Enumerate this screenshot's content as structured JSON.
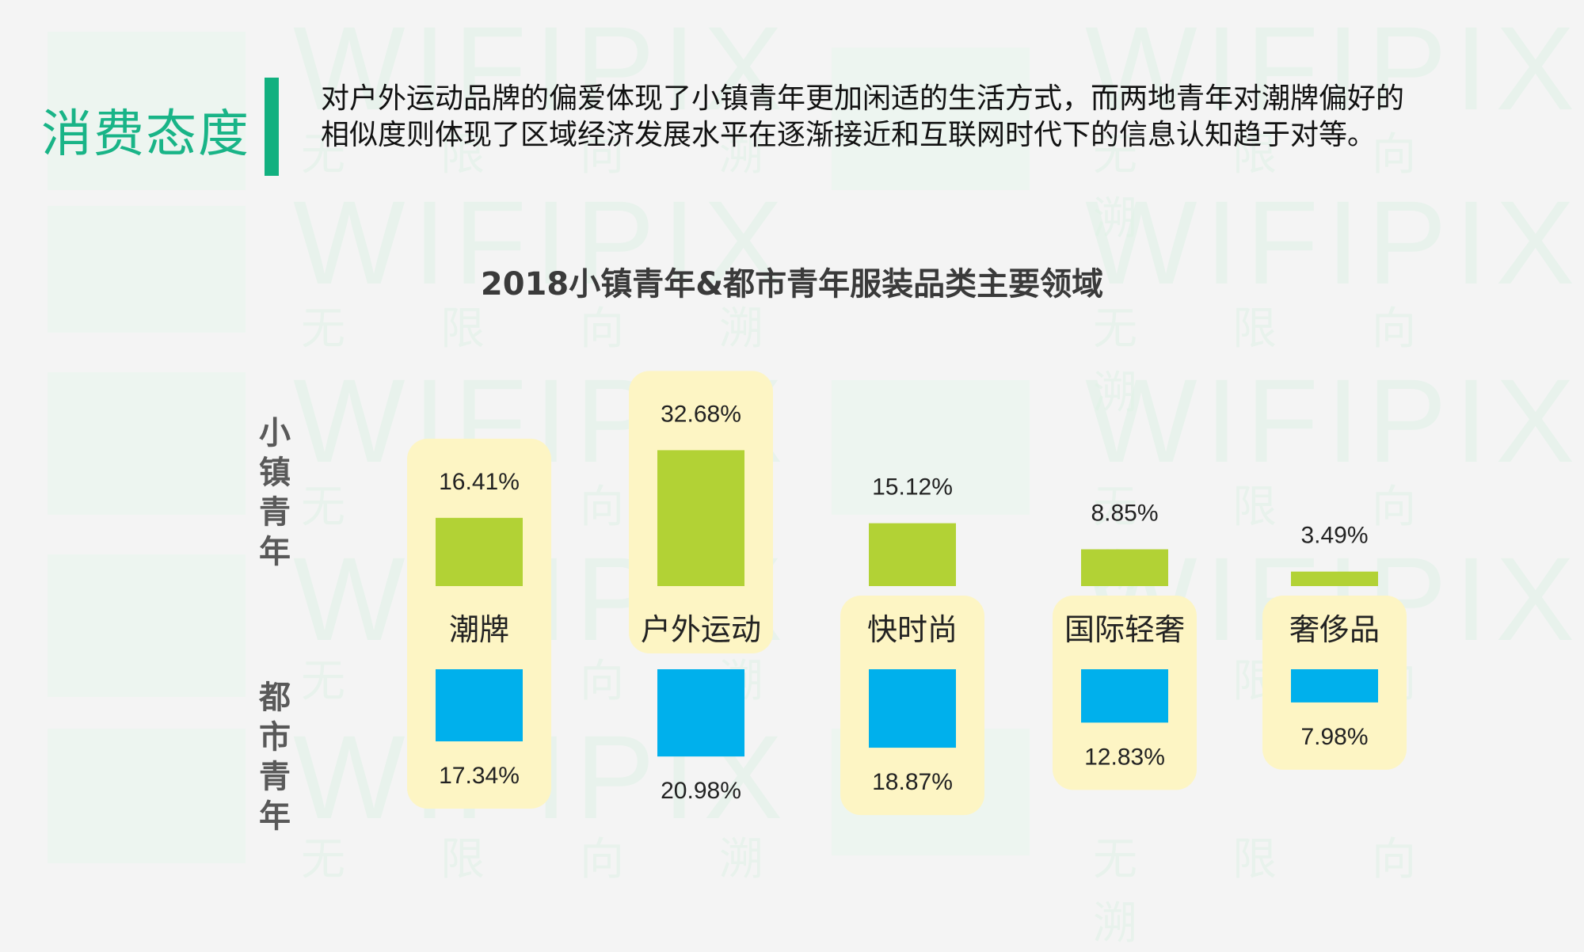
{
  "header": {
    "title": "消费态度",
    "description": "对户外运动品牌的偏爱体现了小镇青年更加闲适的生活方式，而两地青年对潮牌偏好的相似度则体现了区域经济发展水平在逐渐接近和互联网时代下的信息认知趋于对等。"
  },
  "watermark": {
    "word": "WIFIPIX",
    "chars": "无限向溯"
  },
  "colors": {
    "accent": "#11b07f",
    "town": "#b2d235",
    "city": "#00b0ec",
    "highlight": "#fdf5c4"
  },
  "chart_data": {
    "type": "bar",
    "title": "2018小镇青年&都市青年服装品类主要领域",
    "categories": [
      "潮牌",
      "户外运动",
      "快时尚",
      "国际轻奢",
      "奢侈品"
    ],
    "series": [
      {
        "name": "小镇青年",
        "values": [
          16.41,
          32.68,
          15.12,
          8.85,
          3.49
        ],
        "labels": [
          "16.41%",
          "32.68%",
          "15.12%",
          "8.85%",
          "3.49%"
        ]
      },
      {
        "name": "都市青年",
        "values": [
          17.34,
          20.98,
          18.87,
          12.83,
          7.98
        ],
        "labels": [
          "17.34%",
          "20.98%",
          "18.87%",
          "12.83%",
          "7.98%"
        ]
      }
    ],
    "highlighted": {
      "小镇青年": [
        "潮牌",
        "户外运动"
      ],
      "都市青年": [
        "潮牌",
        "快时尚",
        "国际轻奢",
        "奢侈品"
      ]
    }
  }
}
